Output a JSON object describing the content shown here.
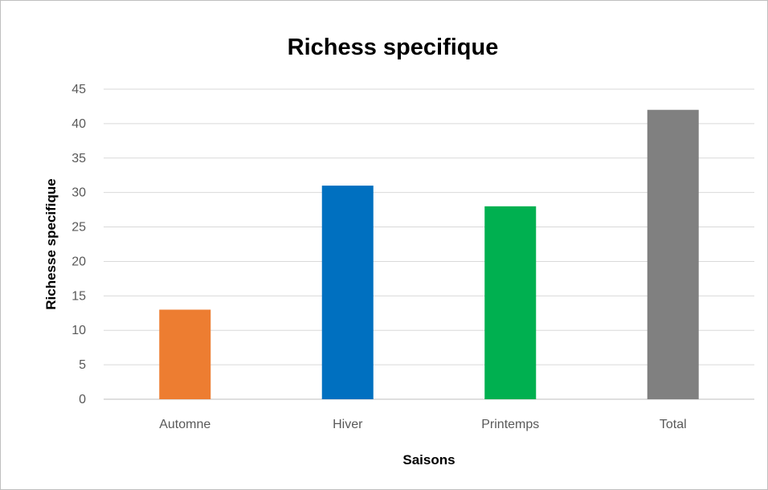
{
  "chart_data": {
    "type": "bar",
    "title": "Richess specifique",
    "xlabel": "Saisons",
    "ylabel": "Richesse  specifique",
    "categories": [
      "Automne",
      "Hiver",
      "Printemps",
      "Total"
    ],
    "values": [
      13,
      31,
      28,
      42
    ],
    "colors": [
      "#ED7D31",
      "#0070C0",
      "#00B050",
      "#808080"
    ],
    "ylim": [
      0,
      45
    ],
    "yticks": [
      0,
      5,
      10,
      15,
      20,
      25,
      30,
      35,
      40,
      45
    ],
    "grid": true,
    "legend": "none"
  }
}
